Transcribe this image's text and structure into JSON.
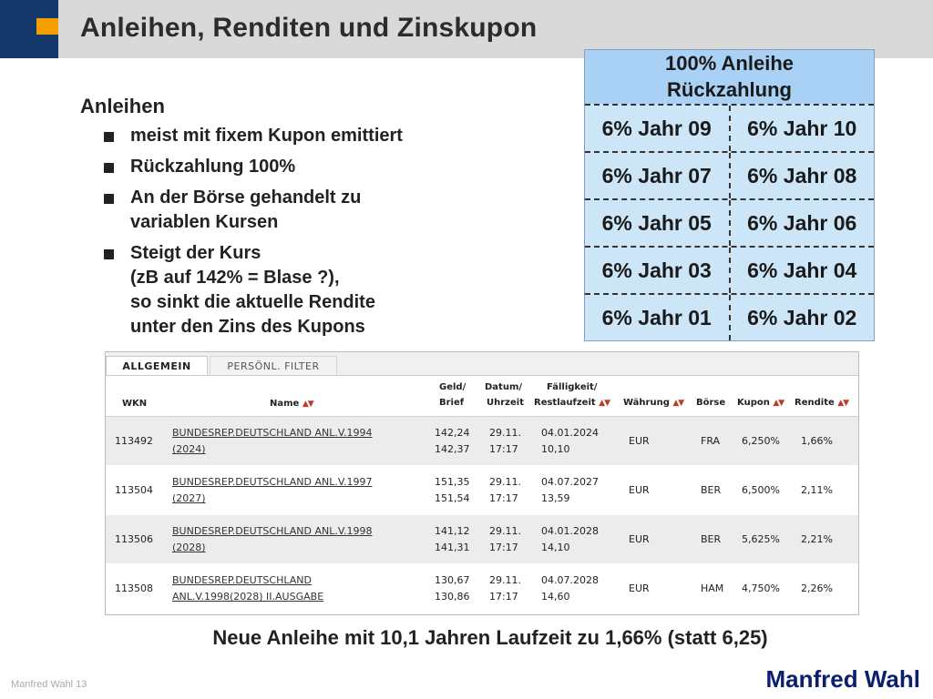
{
  "header": {
    "title": "Anleihen, Renditen und Zinskupon"
  },
  "bullets": {
    "heading": "Anleihen",
    "items": [
      [
        "meist mit fixem Kupon emittiert"
      ],
      [
        "Rückzahlung 100%"
      ],
      [
        "An der Börse gehandelt zu",
        "variablen Kursen"
      ],
      [
        "Steigt der Kurs",
        "(zB auf 142% = Blase ?),",
        "so sinkt die aktuelle Rendite",
        "unter den Zins des Kupons"
      ]
    ]
  },
  "bond_diagram": {
    "header_line1": "100% Anleihe",
    "header_line2": "Rückzahlung",
    "rows": [
      [
        "6% Jahr 09",
        "6% Jahr 10"
      ],
      [
        "6% Jahr 07",
        "6% Jahr 08"
      ],
      [
        "6% Jahr 05",
        "6% Jahr 06"
      ],
      [
        "6% Jahr 03",
        "6% Jahr 04"
      ],
      [
        "6% Jahr 01",
        "6% Jahr 02"
      ]
    ]
  },
  "screenshot": {
    "tabs": {
      "active": "ALLGEMEIN",
      "inactive": "PERSÖNL. FILTER"
    },
    "columns": {
      "wkn": "WKN",
      "name": "Name",
      "geld": "Geld/",
      "brief": "Brief",
      "datum": "Datum/",
      "uhrzeit": "Uhrzeit",
      "faelligkeit": "Fälligkeit/",
      "restlaufzeit": "Restlaufzeit",
      "waehrung": "Währung",
      "boerse": "Börse",
      "kupon": "Kupon",
      "rendite": "Rendite"
    },
    "rows": [
      {
        "wkn": "113492",
        "name1": "BUNDESREP.DEUTSCHLAND ANL.V.1994",
        "name2": "(2024)",
        "geld": "142,24",
        "brief": "142,37",
        "datum": "29.11.",
        "uhrzeit": "17:17",
        "faellig": "04.01.2024",
        "rest": "10,10",
        "waehrung": "EUR",
        "boerse": "FRA",
        "kupon": "6,250%",
        "rendite": "1,66%"
      },
      {
        "wkn": "113504",
        "name1": "BUNDESREP.DEUTSCHLAND ANL.V.1997",
        "name2": "(2027)",
        "geld": "151,35",
        "brief": "151,54",
        "datum": "29.11.",
        "uhrzeit": "17:17",
        "faellig": "04.07.2027",
        "rest": "13,59",
        "waehrung": "EUR",
        "boerse": "BER",
        "kupon": "6,500%",
        "rendite": "2,11%"
      },
      {
        "wkn": "113506",
        "name1": "BUNDESREP.DEUTSCHLAND ANL.V.1998",
        "name2": "(2028)",
        "geld": "141,12",
        "brief": "141,31",
        "datum": "29.11.",
        "uhrzeit": "17:17",
        "faellig": "04.01.2028",
        "rest": "14,10",
        "waehrung": "EUR",
        "boerse": "BER",
        "kupon": "5,625%",
        "rendite": "2,21%"
      },
      {
        "wkn": "113508",
        "name1": "BUNDESREP.DEUTSCHLAND",
        "name2": "ANL.V.1998(2028) II.AUSGABE",
        "geld": "130,67",
        "brief": "130,86",
        "datum": "29.11.",
        "uhrzeit": "17:17",
        "faellig": "04.07.2028",
        "rest": "14,60",
        "waehrung": "EUR",
        "boerse": "HAM",
        "kupon": "4,750%",
        "rendite": "2,26%"
      }
    ]
  },
  "footer": {
    "conclusion": "Neue Anleihe mit 10,1 Jahren Laufzeit zu 1,66% (statt 6,25)",
    "author_page": "Manfred Wahl 13",
    "brand": "Manfred Wahl"
  }
}
